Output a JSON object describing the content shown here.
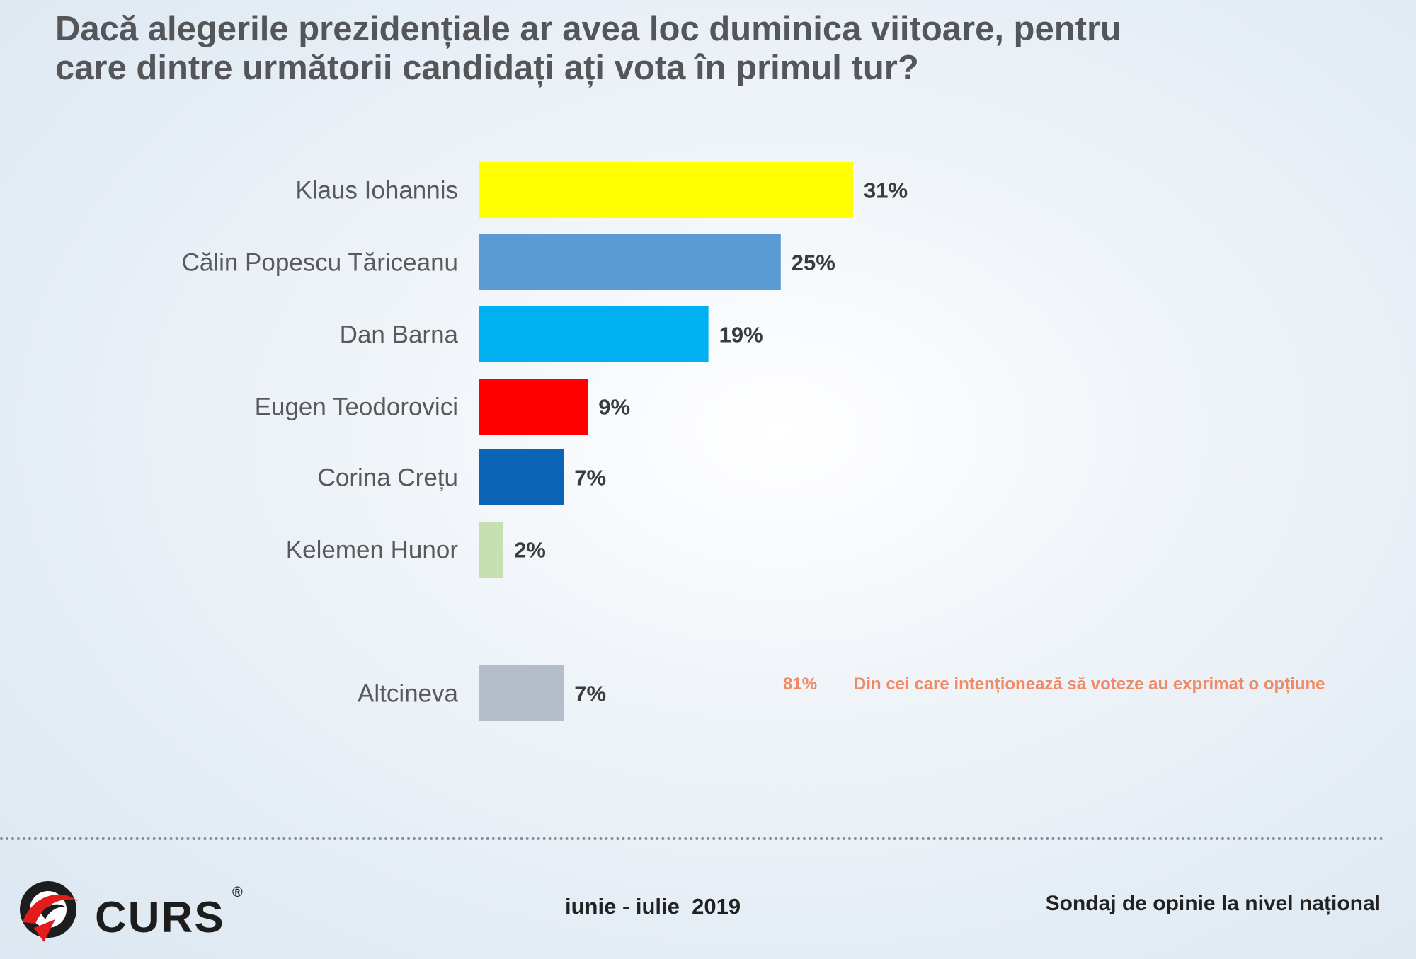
{
  "chart_data": {
    "type": "bar",
    "orientation": "horizontal",
    "title": "Dacă alegerile prezidențiale ar avea loc duminica viitoare, pentru care dintre următorii candidați ați vota în primul tur?",
    "title_lines": [
      "Dacă alegerile prezidențiale ar avea loc duminica viitoare, pentru",
      "care dintre următorii candidați ați vota în primul tur?"
    ],
    "categories": [
      "Klaus Iohannis",
      "Călin Popescu Tăriceanu",
      "Dan Barna",
      "Eugen Teodorovici",
      "Corina Crețu",
      "Kelemen Hunor",
      "Altcineva"
    ],
    "values": [
      31,
      25,
      19,
      9,
      7,
      2,
      7
    ],
    "value_labels": [
      "31%",
      "25%",
      "19%",
      "9%",
      "7%",
      "2%",
      "7%"
    ],
    "colors": [
      "#ffff00",
      "#5b9bd5",
      "#00b0f0",
      "#ff0000",
      "#0b64b5",
      "#c6e0b4",
      "#b4bdc9"
    ],
    "unit": "%",
    "xlim": [
      0,
      31
    ],
    "note": {
      "value": "81%",
      "text": "Din cei care intenționează să voteze au exprimat o opțiune"
    }
  },
  "footer": {
    "logo_text": "CURS",
    "logo_mark": "®",
    "date": "iunie - iulie  2019",
    "description": "Sondaj de opinie la nivel național"
  },
  "colors": {
    "title": "#555659",
    "note": "#f08a66",
    "logo_red": "#e21c1c"
  }
}
